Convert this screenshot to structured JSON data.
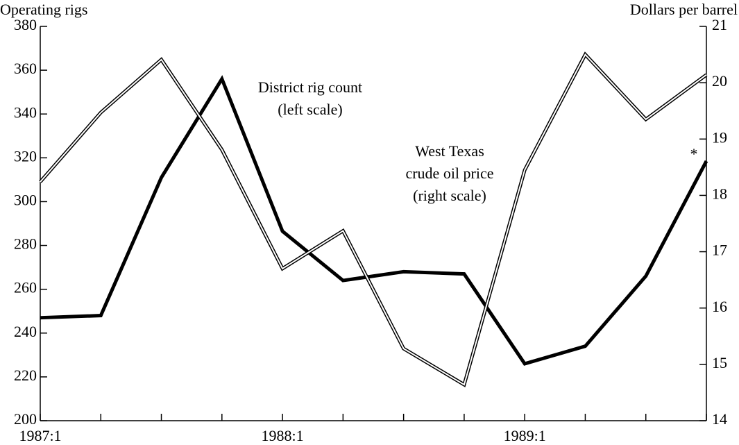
{
  "chart_data": {
    "type": "line",
    "ylabel": "Operating rigs",
    "y2label": "Dollars per barrel",
    "categories": [
      "1987:1",
      null,
      null,
      null,
      "1988:1",
      null,
      null,
      null,
      "1989:1",
      null,
      null,
      null
    ],
    "series": [
      {
        "name": "District rig count (left scale)",
        "color": "#000000",
        "line_style": "solid",
        "values": [
          247,
          248,
          311,
          356,
          286.5,
          264,
          268,
          267,
          226,
          234,
          266,
          318.5
        ]
      },
      {
        "name": "West Texas crude oil price (right scale)",
        "color": "#000000",
        "line_style": "double",
        "axis": "y2",
        "values": [
          18.24,
          19.47,
          20.41,
          18.81,
          16.7,
          17.37,
          15.28,
          14.64,
          18.45,
          20.5,
          19.35,
          20.14
        ]
      }
    ],
    "annotations": [
      "District rig count",
      "(left scale)",
      "West Texas",
      "crude oil price",
      "(right scale)",
      "*"
    ],
    "ylim": [
      200,
      380
    ],
    "yticks": [
      200,
      220,
      240,
      260,
      280,
      300,
      320,
      340,
      360,
      380
    ],
    "y2lim": [
      14,
      21
    ],
    "y2ticks": [
      14,
      15,
      16,
      17,
      18,
      19,
      20,
      21
    ]
  }
}
